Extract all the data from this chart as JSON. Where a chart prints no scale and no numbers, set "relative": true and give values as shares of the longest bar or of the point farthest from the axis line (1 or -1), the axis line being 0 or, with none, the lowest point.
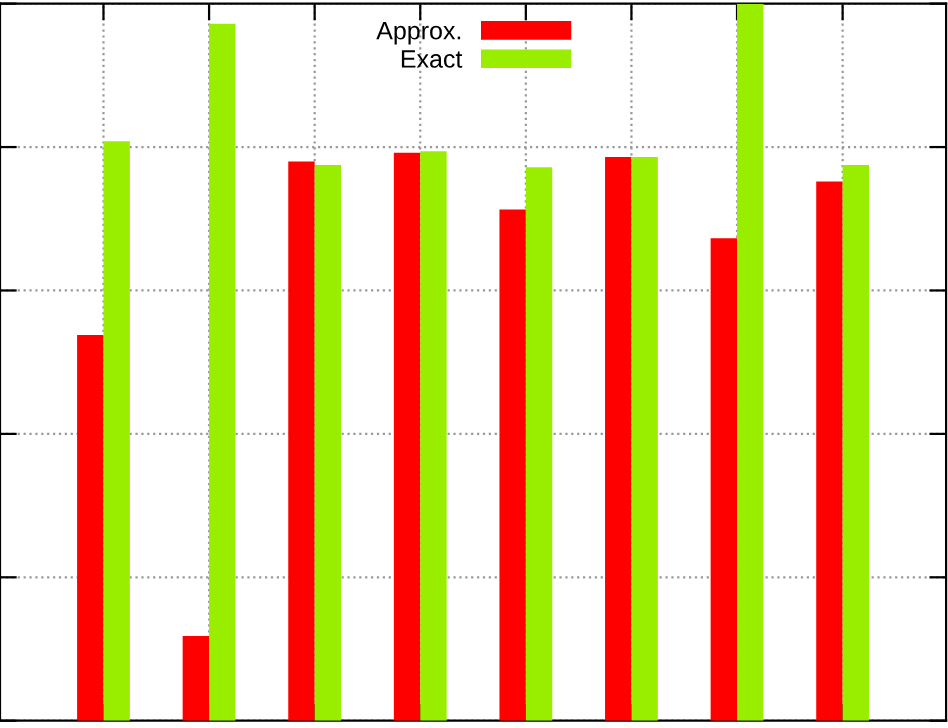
{
  "chart_data": {
    "type": "bar",
    "relative": true,
    "categories": [
      null,
      null,
      null,
      null,
      null,
      null,
      null,
      null
    ],
    "series": [
      {
        "name": "Approx.",
        "color": "#ff0000",
        "values": [
          0.538,
          0.118,
          0.78,
          0.792,
          0.713,
          0.786,
          0.673,
          0.752
        ]
      },
      {
        "name": "Exact",
        "color": "#99ee00",
        "values": [
          0.808,
          0.972,
          0.775,
          0.794,
          0.772,
          0.786,
          1.0,
          0.775
        ]
      }
    ],
    "grid": true,
    "legend": "top"
  }
}
